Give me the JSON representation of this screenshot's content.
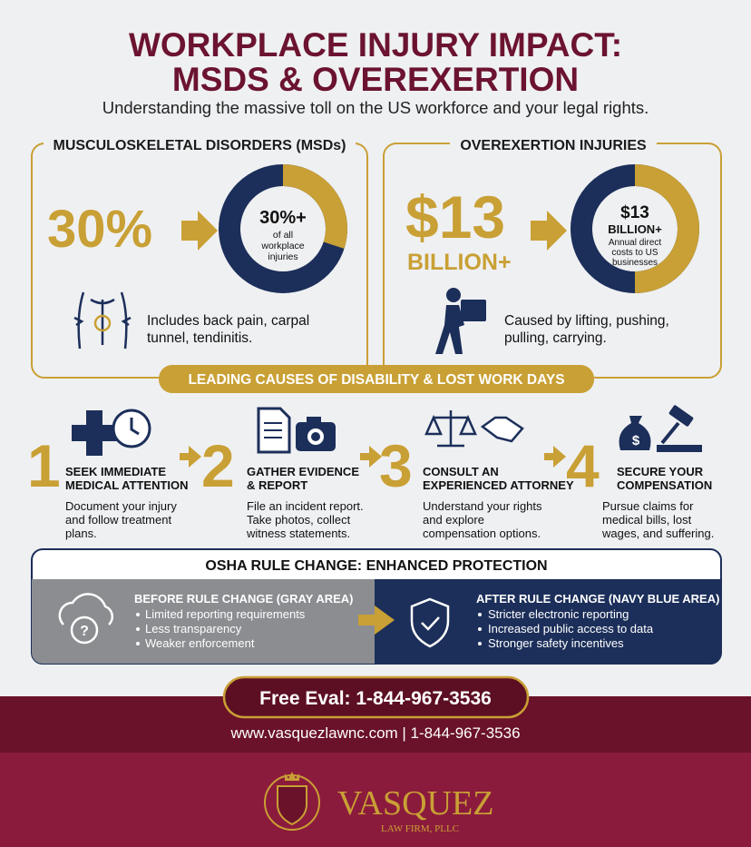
{
  "header": {
    "title_lines": [
      "WORKPLACE INJURY IMPACT:",
      "MSDS & OVEREXERTION"
    ],
    "subtitle": "Understanding the massive toll on the US workforce and your legal rights."
  },
  "panels": [
    {
      "heading": "MUSCULOSKELETAL DISORDERS (MSDs)",
      "big_stat": "30%",
      "donut_stat": "30%+",
      "donut_text": [
        "of all",
        "workplace",
        "injuries"
      ],
      "caption": [
        "Includes back pain, carpal",
        "tunnel, tendinitis."
      ]
    },
    {
      "heading": "OVEREXERTION INJURIES",
      "big_stat": "$13",
      "big_stat_unit": "BILLION+",
      "donut_stat": "$13",
      "donut_stat_unit": "BILLION+",
      "donut_text": [
        "Annual direct",
        "costs to US",
        "businesses"
      ],
      "caption": [
        "Caused by lifting, pushing,",
        "pulling, carrying."
      ]
    }
  ],
  "causes_banner": "LEADING CAUSES OF DISABILITY & LOST WORK DAYS",
  "steps": [
    {
      "number": 1,
      "title": [
        "SEEK IMMEDIATE",
        "MEDICAL ATTENTION"
      ],
      "text": [
        "Document your injury",
        "and follow treatment",
        "plans."
      ]
    },
    {
      "number": 2,
      "title": [
        "GATHER EVIDENCE",
        "& REPORT"
      ],
      "text": [
        "File an incident report.",
        "Take photos, collect",
        "witness statements."
      ]
    },
    {
      "number": 3,
      "title": [
        "CONSULT AN",
        "EXPERIENCED ATTORNEY"
      ],
      "text": [
        "Understand your rights",
        "and explore",
        "compensation options."
      ]
    },
    {
      "number": 4,
      "title": [
        "SECURE YOUR",
        "COMPENSATION"
      ],
      "text": [
        "Pursue claims for",
        "medical bills, lost",
        "wages, and suffering."
      ]
    }
  ],
  "osha": {
    "title": "OSHA RULE CHANGE: ENHANCED PROTECTION",
    "before": {
      "heading": "BEFORE RULE CHANGE (GRAY AREA)",
      "items": [
        "Limited reporting requirements",
        "Less transparency",
        "Weaker enforcement"
      ]
    },
    "after": {
      "heading": "AFTER RULE CHANGE (NAVY BLUE AREA)",
      "items": [
        "Stricter electronic reporting",
        "Increased public access to data",
        "Stronger safety incentives"
      ]
    }
  },
  "cta": "Free Eval: 1-844-967-3536",
  "contact": "www.vasquezlawnc.com | 1-844-967-3536",
  "logo": {
    "name": "VASQUEZ",
    "subtitle": "LAW FIRM, PLLC"
  }
}
